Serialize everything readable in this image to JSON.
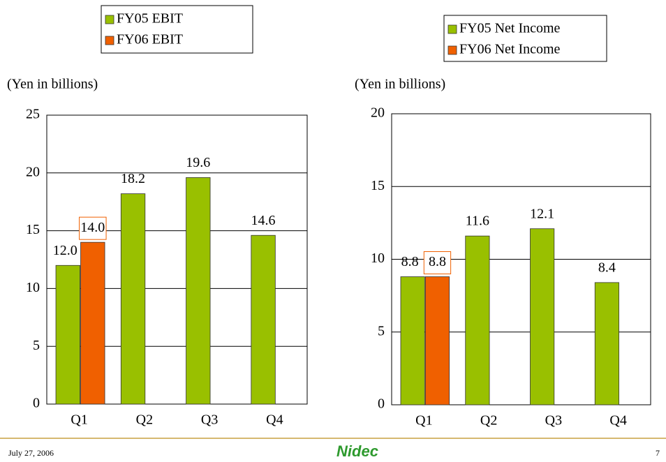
{
  "chart_data": [
    {
      "type": "bar",
      "y_axis_label": "(Yen in billions)",
      "categories": [
        "Q1",
        "Q2",
        "Q3",
        "Q4"
      ],
      "series": [
        {
          "name": "FY05 EBIT",
          "color": "#99c000",
          "values": [
            12.0,
            18.2,
            19.6,
            14.6
          ],
          "value_labels": [
            "12.0",
            "18.2",
            "19.6",
            "14.6"
          ]
        },
        {
          "name": "FY06 EBIT",
          "color": "#f06000",
          "values": [
            14.0,
            null,
            null,
            null
          ],
          "value_labels": [
            "14.0",
            null,
            null,
            null
          ]
        }
      ],
      "ylim": [
        0,
        25
      ],
      "yticks": [
        0,
        5,
        10,
        15,
        20,
        25
      ],
      "grid": true
    },
    {
      "type": "bar",
      "y_axis_label": "(Yen in billions)",
      "categories": [
        "Q1",
        "Q2",
        "Q3",
        "Q4"
      ],
      "series": [
        {
          "name": "FY05 Net Income",
          "color": "#99c000",
          "values": [
            8.8,
            11.6,
            12.1,
            8.4
          ]
        },
        {
          "name": "FY06 Net Income",
          "color": "#f06000",
          "values": [
            8.8,
            null,
            null,
            null
          ]
        }
      ],
      "ylim": [
        0,
        20
      ],
      "yticks": [
        0,
        5,
        10,
        15,
        20
      ],
      "grid": true
    }
  ],
  "footer": {
    "date": "July 27, 2006",
    "logo": "Nidec",
    "page": "7"
  }
}
